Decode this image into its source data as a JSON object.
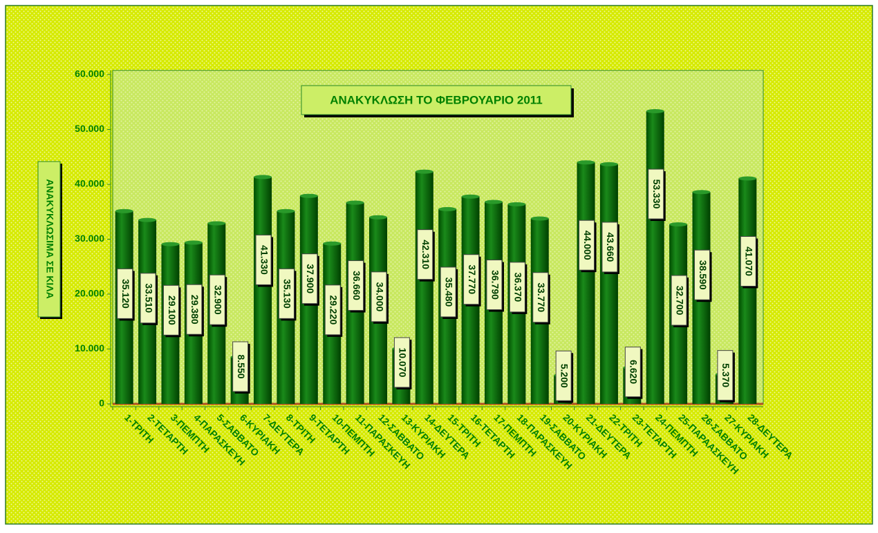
{
  "chart_data": {
    "type": "bar",
    "title": "ΑΝΑΚΥΚΛΩΣΗ ΤΟ ΦΕΒΡΟΥΑΡΙΟ 2011",
    "y_label": "ΑΝΑΚΥΚΛΩΣΙΜΑ ΣΕ ΚΙΛΑ",
    "categories": [
      "1-ΤΡΙΤΗ",
      "2-ΤΕΤΑΡΤΗ",
      "3-ΠΕΜΠΤΗ",
      "4-ΠΑΡΑΣΚΕΥΗ",
      "5-ΣΑΒΒΑΤΟ",
      "6-ΚΥΡΙΑΚΗ",
      "7-ΔΕΥΤΕΡΑ",
      "8-ΤΡΙΤΗ",
      "9-ΤΕΤΑΡΤΗ",
      "10-ΠΕΜΠΤΗ",
      "11-ΠΑΡΑΣΚΕΥΗ",
      "12-ΣΑΒΒΑΤΟ",
      "13-ΚΥΡΙΑΚΗ",
      "14-ΔΕΥΤΕΡΑ",
      "15-ΤΡΙΤΗ",
      "16-ΤΕΤΑΡΤΗ",
      "17-ΠΕΜΠΤΗ",
      "18-ΠΑΡΑΣΚΕΥΗ",
      "19-ΣΑΒΒΑΤΟ",
      "20-ΚΥΡΙΑΚΗ",
      "21-ΔΕΥΤΕΡΑ",
      "22-ΤΡΙΤΗ",
      "23-ΤΕΤΑΡΤΗ",
      "24-ΠΕΜΠΤΗ",
      "25-ΠΑΡΑΑΣΚΕΥΗ",
      "26-ΣΑΒΒΑΤΟ",
      "27-ΚΥΡΙΑΚΗ",
      "28-ΔΕΥΤΕΡΑ"
    ],
    "values": [
      35120,
      33510,
      29100,
      29380,
      32900,
      8550,
      41330,
      35130,
      37900,
      29220,
      36660,
      34000,
      10070,
      42310,
      35480,
      37770,
      36790,
      36370,
      33770,
      5200,
      44000,
      43660,
      6620,
      53330,
      32700,
      38590,
      5370,
      41070
    ],
    "value_labels": [
      "35.120",
      "33.510",
      "29.100",
      "29.380",
      "32.900",
      "8.550",
      "41.330",
      "35.130",
      "37.900",
      "29.220",
      "36.660",
      "34.000",
      "10.070",
      "42.310",
      "35.480",
      "37.770",
      "36.790",
      "36.370",
      "33.770",
      "5.200",
      "44.000",
      "43.660",
      "6.620",
      "53.330",
      "32.700",
      "38.590",
      "5.370",
      "41.070"
    ],
    "color": "#006400",
    "ylim": [
      0,
      60000
    ],
    "yticks": [
      0,
      {
        "value": 10000,
        "label": "10.000"
      },
      {
        "value": 20000,
        "label": "20.000"
      },
      {
        "value": 30000,
        "label": "30.000"
      },
      {
        "value": 40000,
        "label": "40.000"
      },
      {
        "value": 50000,
        "label": "50.000"
      },
      {
        "value": 60000,
        "label": "60.000"
      }
    ]
  }
}
